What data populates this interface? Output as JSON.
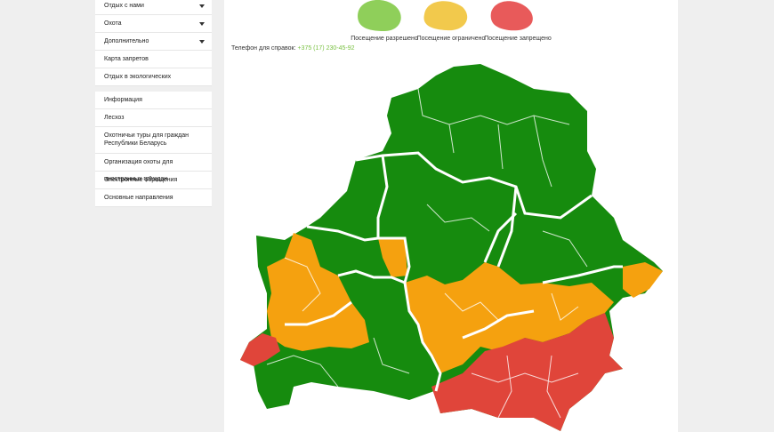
{
  "sidebar": {
    "group1": [
      "Отдых с нами",
      "Охота",
      "Дополнительно",
      "Карта запретов",
      "Отдых в экологических комплексах"
    ],
    "group2": [
      "Информация",
      "Лесхоз",
      "Охотничьи туры для граждан Республики Беларусь",
      "Организация охоты для иностранных граждан",
      "Электронные обращения",
      "Основные направления"
    ]
  },
  "legend": [
    "Посещение разрешено",
    "Посещение ограничено",
    "Посещение запрещено"
  ],
  "contact": {
    "label": "Телефон для справок:",
    "phone": "+375 (17) 230-45-92"
  }
}
